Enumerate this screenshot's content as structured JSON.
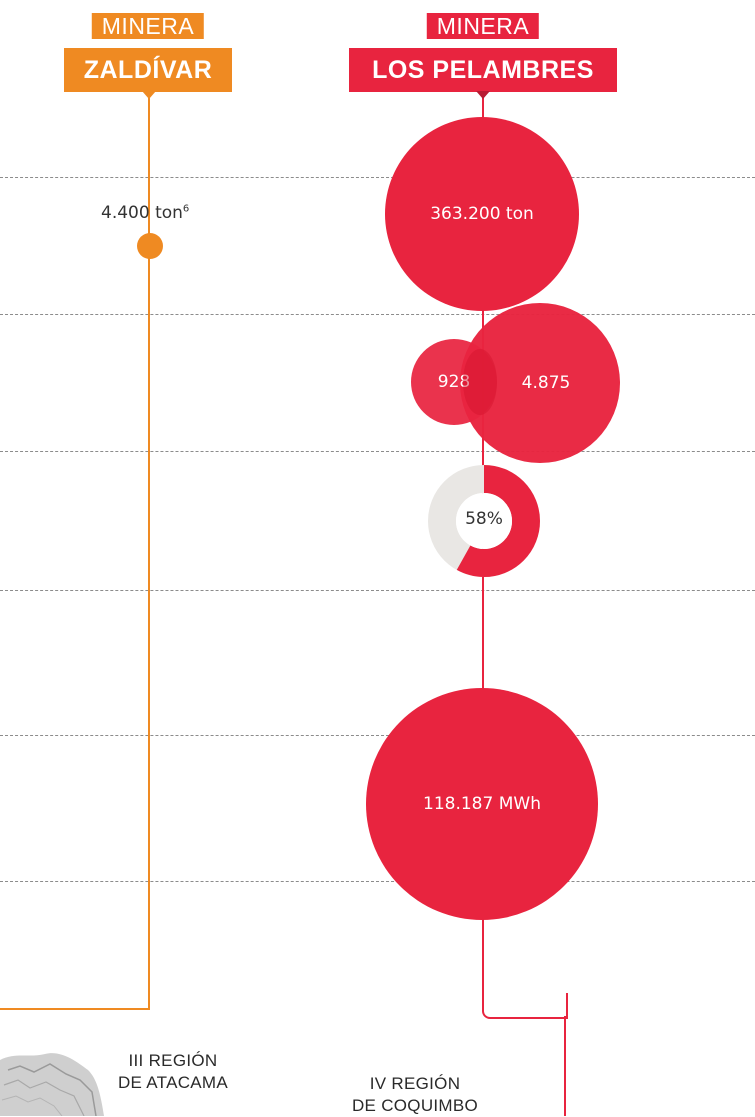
{
  "columns": [
    {
      "id": "zaldivar",
      "title_top": "MINERA",
      "title_bottom": "ZALDÍVAR",
      "color": "#ef8a22",
      "values": {
        "row1": "4.400 ton",
        "row1_footnote": "6"
      }
    },
    {
      "id": "los_pelambres",
      "title_top": "MINERA",
      "title_bottom": "LOS PELAMBRES",
      "color": "#e8243f",
      "values": {
        "row1": "363.200 ton",
        "row2_left": "928",
        "row2_right": "4.875",
        "row3_percent": "58%",
        "row3_fraction": 0.58,
        "row5": "118.187 MWh"
      }
    }
  ],
  "regions": [
    {
      "line1": "III REGIÓN",
      "line2": "DE ATACAMA"
    },
    {
      "line1": "IV REGIÓN",
      "line2": "DE COQUIMBO"
    }
  ],
  "colors": {
    "donut_remainder": "#e9e7e4",
    "grid": "#8c8c8c"
  }
}
